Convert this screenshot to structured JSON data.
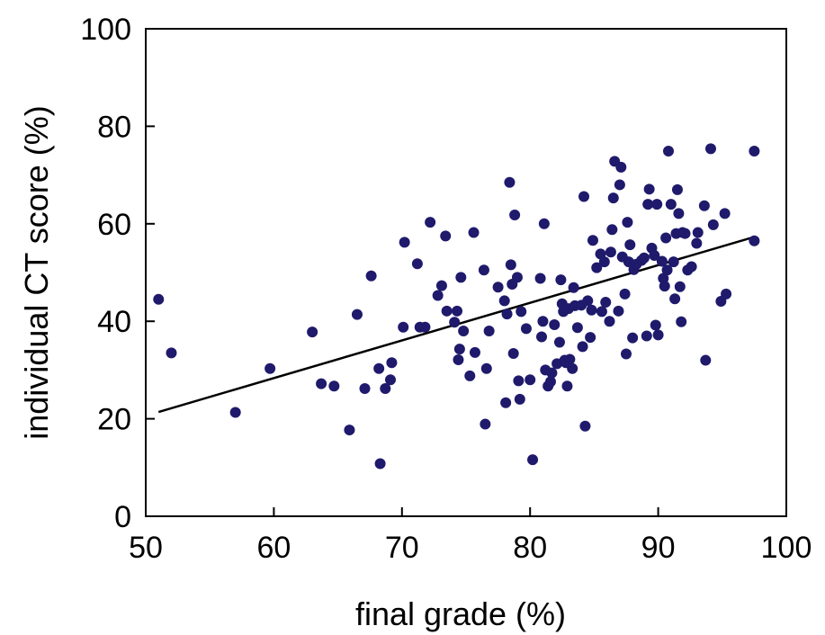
{
  "chart_data": {
    "type": "scatter",
    "xlabel": "final grade (%)",
    "ylabel": "individual CT score (%)",
    "xlim": [
      50,
      100
    ],
    "ylim": [
      0,
      100
    ],
    "xticks": [
      "50",
      "60",
      "70",
      "80",
      "90",
      "100"
    ],
    "yticks": [
      "0",
      "20",
      "40",
      "60",
      "80",
      "100"
    ],
    "grid": false,
    "legend": "none",
    "colors": {
      "points": "#1f1a6b",
      "trend": "#000000",
      "axes": "#000000"
    },
    "series": [
      {
        "points": [
          [
            51.0,
            44.5
          ],
          [
            52.0,
            33.5
          ],
          [
            57.0,
            21.3
          ],
          [
            59.7,
            30.3
          ],
          [
            63.0,
            37.8
          ],
          [
            63.7,
            27.2
          ],
          [
            64.7,
            26.7
          ],
          [
            65.9,
            17.7
          ],
          [
            66.5,
            41.4
          ],
          [
            67.1,
            26.2
          ],
          [
            67.6,
            49.3
          ],
          [
            68.2,
            30.3
          ],
          [
            68.3,
            10.8
          ],
          [
            68.7,
            26.2
          ],
          [
            69.1,
            28.0
          ],
          [
            69.2,
            31.5
          ],
          [
            70.1,
            38.8
          ],
          [
            70.2,
            56.2
          ],
          [
            71.2,
            51.8
          ],
          [
            71.4,
            38.8
          ],
          [
            71.8,
            38.8
          ],
          [
            72.2,
            60.3
          ],
          [
            72.8,
            45.3
          ],
          [
            73.1,
            47.3
          ],
          [
            73.4,
            57.5
          ],
          [
            73.5,
            42.1
          ],
          [
            74.1,
            39.8
          ],
          [
            74.3,
            42.1
          ],
          [
            74.4,
            32.1
          ],
          [
            74.5,
            34.3
          ],
          [
            74.6,
            49.0
          ],
          [
            74.8,
            38.0
          ],
          [
            75.3,
            28.8
          ],
          [
            75.6,
            58.2
          ],
          [
            75.7,
            33.6
          ],
          [
            76.4,
            50.5
          ],
          [
            76.5,
            18.9
          ],
          [
            76.6,
            30.3
          ],
          [
            76.8,
            38.0
          ],
          [
            77.5,
            47.0
          ],
          [
            78.0,
            44.2
          ],
          [
            78.1,
            23.3
          ],
          [
            78.2,
            41.5
          ],
          [
            78.4,
            68.5
          ],
          [
            78.5,
            51.6
          ],
          [
            78.6,
            47.6
          ],
          [
            78.7,
            33.4
          ],
          [
            78.8,
            61.8
          ],
          [
            79.0,
            49.0
          ],
          [
            79.1,
            27.8
          ],
          [
            79.2,
            24.0
          ],
          [
            79.3,
            42.0
          ],
          [
            79.7,
            38.5
          ],
          [
            80.0,
            28.0
          ],
          [
            80.2,
            11.6
          ],
          [
            80.8,
            48.8
          ],
          [
            80.9,
            36.8
          ],
          [
            81.0,
            40.0
          ],
          [
            81.1,
            60.0
          ],
          [
            81.2,
            30.0
          ],
          [
            81.4,
            26.7
          ],
          [
            81.6,
            27.6
          ],
          [
            81.7,
            29.4
          ],
          [
            81.9,
            39.3
          ],
          [
            82.1,
            31.3
          ],
          [
            82.3,
            35.7
          ],
          [
            82.4,
            48.5
          ],
          [
            82.5,
            43.6
          ],
          [
            82.6,
            42.0
          ],
          [
            82.7,
            32.0
          ],
          [
            82.8,
            31.5
          ],
          [
            82.9,
            26.7
          ],
          [
            83.0,
            42.6
          ],
          [
            83.1,
            32.2
          ],
          [
            83.3,
            30.3
          ],
          [
            83.4,
            46.9
          ],
          [
            83.5,
            43.2
          ],
          [
            83.7,
            38.7
          ],
          [
            84.0,
            43.3
          ],
          [
            84.1,
            34.8
          ],
          [
            84.2,
            65.6
          ],
          [
            84.3,
            18.5
          ],
          [
            84.5,
            44.2
          ],
          [
            84.7,
            36.7
          ],
          [
            84.8,
            42.3
          ],
          [
            84.9,
            56.6
          ],
          [
            85.2,
            51.0
          ],
          [
            85.5,
            53.8
          ],
          [
            85.6,
            42.0
          ],
          [
            85.8,
            52.2
          ],
          [
            85.9,
            43.9
          ],
          [
            86.2,
            40.0
          ],
          [
            86.3,
            54.2
          ],
          [
            86.4,
            58.8
          ],
          [
            86.5,
            65.3
          ],
          [
            86.6,
            72.8
          ],
          [
            86.9,
            42.1
          ],
          [
            87.0,
            68.0
          ],
          [
            87.1,
            71.6
          ],
          [
            87.2,
            53.2
          ],
          [
            87.4,
            45.6
          ],
          [
            87.5,
            33.3
          ],
          [
            87.6,
            60.3
          ],
          [
            87.7,
            52.2
          ],
          [
            87.8,
            55.7
          ],
          [
            88.0,
            36.6
          ],
          [
            88.1,
            50.6
          ],
          [
            88.3,
            51.7
          ],
          [
            88.7,
            52.5
          ],
          [
            88.9,
            53.0
          ],
          [
            89.1,
            37.0
          ],
          [
            89.2,
            64.0
          ],
          [
            89.3,
            67.1
          ],
          [
            89.5,
            55.0
          ],
          [
            89.7,
            53.5
          ],
          [
            89.8,
            39.2
          ],
          [
            89.9,
            64.0
          ],
          [
            90.0,
            37.2
          ],
          [
            90.3,
            52.3
          ],
          [
            90.4,
            48.8
          ],
          [
            90.5,
            47.2
          ],
          [
            90.6,
            57.1
          ],
          [
            90.7,
            50.5
          ],
          [
            90.8,
            74.9
          ],
          [
            91.0,
            64.0
          ],
          [
            91.2,
            52.2
          ],
          [
            91.3,
            44.6
          ],
          [
            91.4,
            58.0
          ],
          [
            91.5,
            67.0
          ],
          [
            91.6,
            62.1
          ],
          [
            91.7,
            47.1
          ],
          [
            91.8,
            39.9
          ],
          [
            91.9,
            58.2
          ],
          [
            92.1,
            58.0
          ],
          [
            92.3,
            50.5
          ],
          [
            92.6,
            51.2
          ],
          [
            93.0,
            56.0
          ],
          [
            93.1,
            58.2
          ],
          [
            93.6,
            63.7
          ],
          [
            93.7,
            32.0
          ],
          [
            94.1,
            75.4
          ],
          [
            94.3,
            59.8
          ],
          [
            94.9,
            44.1
          ],
          [
            95.2,
            62.1
          ],
          [
            95.3,
            45.6
          ],
          [
            97.5,
            56.5
          ],
          [
            97.5,
            74.9
          ]
        ]
      }
    ],
    "trendline": {
      "x": [
        51,
        97.5
      ],
      "y": [
        21.4,
        57.3
      ]
    }
  }
}
